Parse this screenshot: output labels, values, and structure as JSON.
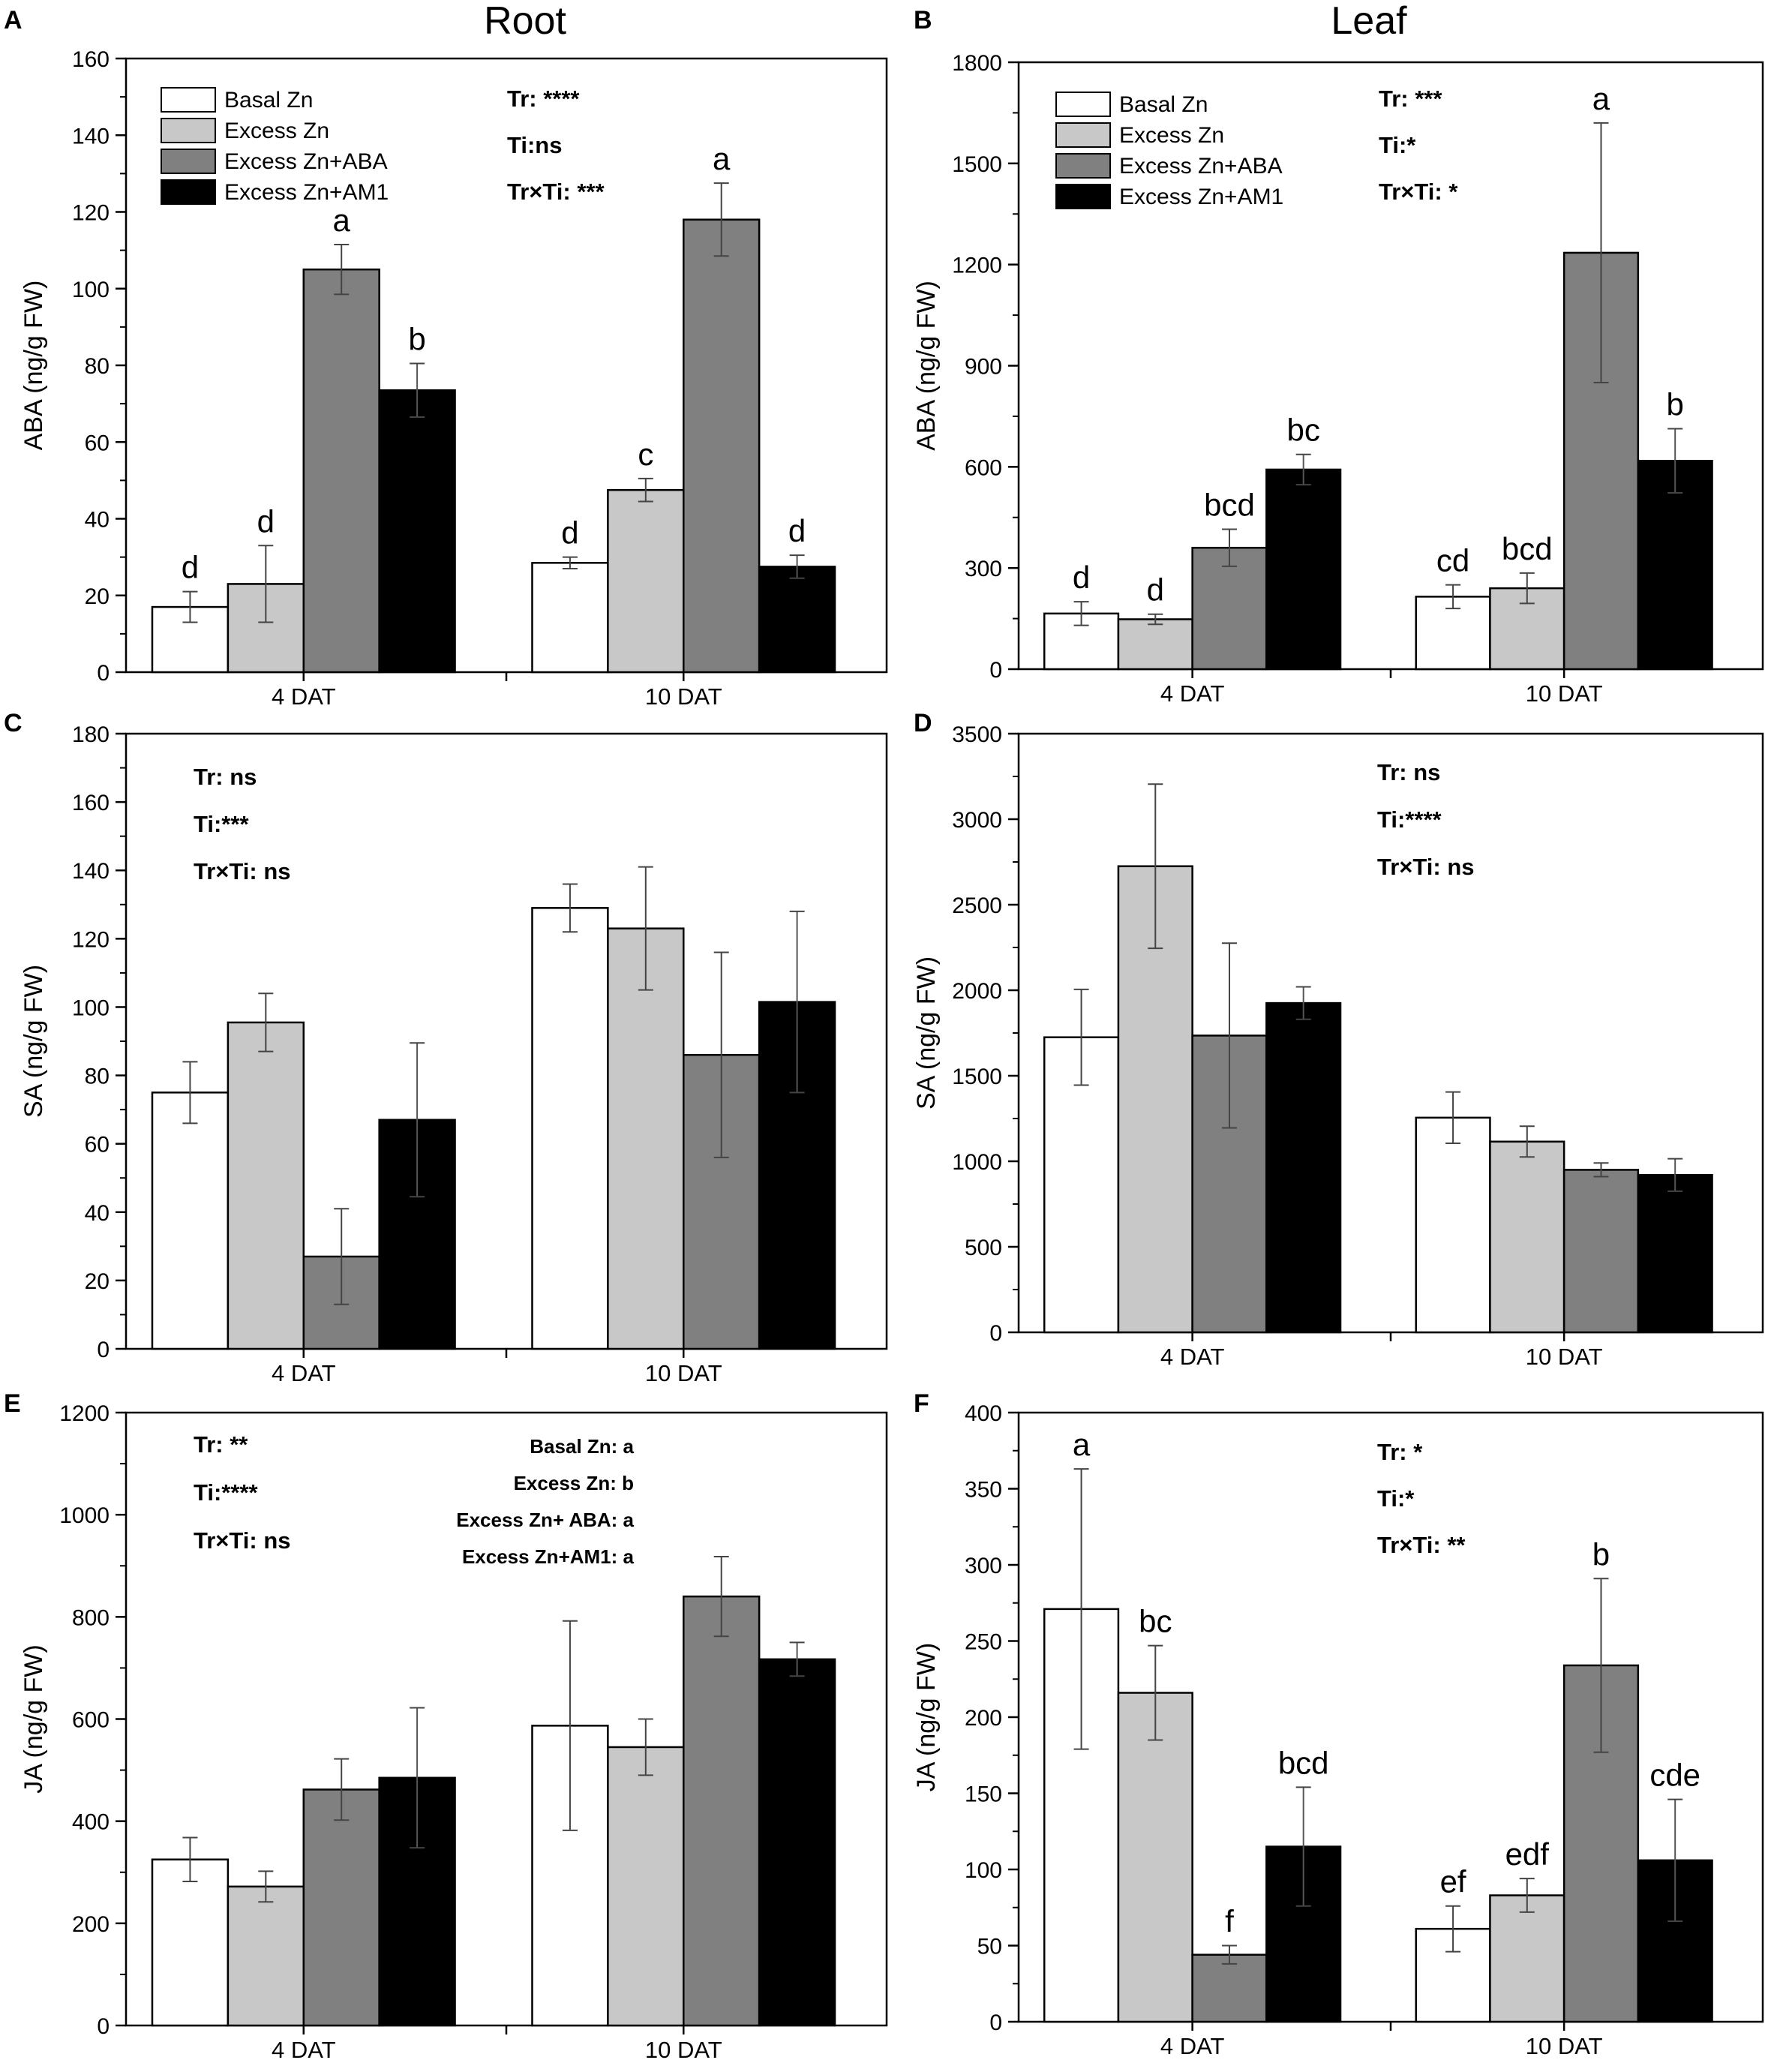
{
  "column_titles": {
    "root": "Root",
    "leaf": "Leaf"
  },
  "legend": {
    "entries": [
      "Basal Zn",
      "Excess Zn",
      "Excess Zn+ABA",
      "Excess Zn+AM1"
    ],
    "colors": [
      "#ffffff",
      "#c8c8c8",
      "#808080",
      "#000000"
    ]
  },
  "chart_data": [
    {
      "panel": "A",
      "type": "bar",
      "tissue": "Root",
      "categories": [
        "4 DAT",
        "10 DAT"
      ],
      "ylabel": "ABA (ng/g FW)",
      "ylim": [
        0,
        160
      ],
      "yticks": [
        "0",
        "20",
        "40",
        "60",
        "80",
        "100",
        "120",
        "140",
        "160"
      ],
      "series": [
        {
          "name": "Basal Zn",
          "values": [
            17,
            28.5
          ],
          "errors": [
            4,
            1.5
          ],
          "letters": [
            "d",
            "d"
          ]
        },
        {
          "name": "Excess Zn",
          "values": [
            23,
            47.5
          ],
          "errors": [
            10,
            3
          ],
          "letters": [
            "d",
            "c"
          ]
        },
        {
          "name": "Excess Zn+ABA",
          "values": [
            105,
            118
          ],
          "errors": [
            6.5,
            9.5
          ],
          "letters": [
            "a",
            "a"
          ]
        },
        {
          "name": "Excess Zn+AM1",
          "values": [
            73.5,
            27.5
          ],
          "errors": [
            7,
            3
          ],
          "letters": [
            "b",
            "d"
          ]
        }
      ],
      "stats": [
        "Tr: ****",
        "Ti:ns",
        "Tr×Ti: ***"
      ]
    },
    {
      "panel": "B",
      "type": "bar",
      "tissue": "Leaf",
      "categories": [
        "4 DAT",
        "10 DAT"
      ],
      "ylabel": "ABA (ng/g FW)",
      "ylim": [
        0,
        1800
      ],
      "yticks": [
        "0",
        "300",
        "600",
        "900",
        "1200",
        "1500",
        "1800"
      ],
      "series": [
        {
          "name": "Basal Zn",
          "values": [
            165,
            215
          ],
          "errors": [
            35,
            35
          ],
          "letters": [
            "d",
            "cd"
          ]
        },
        {
          "name": "Excess Zn",
          "values": [
            148,
            240
          ],
          "errors": [
            15,
            45
          ],
          "letters": [
            "d",
            "bcd"
          ]
        },
        {
          "name": "Excess Zn+ABA",
          "values": [
            360,
            1235
          ],
          "errors": [
            55,
            385
          ],
          "letters": [
            "bcd",
            "a"
          ]
        },
        {
          "name": "Excess Zn+AM1",
          "values": [
            592,
            618
          ],
          "errors": [
            45,
            95
          ],
          "letters": [
            "bc",
            "b"
          ]
        }
      ],
      "stats": [
        "Tr: ***",
        "Ti:*",
        "Tr×Ti: *"
      ]
    },
    {
      "panel": "C",
      "type": "bar",
      "tissue": "Root",
      "categories": [
        "4 DAT",
        "10 DAT"
      ],
      "ylabel": "SA (ng/g FW)",
      "ylim": [
        0,
        180
      ],
      "yticks": [
        "0",
        "20",
        "40",
        "60",
        "80",
        "100",
        "120",
        "140",
        "160",
        "180"
      ],
      "series": [
        {
          "name": "Basal Zn",
          "values": [
            75,
            129
          ],
          "errors": [
            9,
            7
          ],
          "letters": [
            "",
            ""
          ]
        },
        {
          "name": "Excess Zn",
          "values": [
            95.5,
            123
          ],
          "errors": [
            8.5,
            18
          ],
          "letters": [
            "",
            ""
          ]
        },
        {
          "name": "Excess Zn+ABA",
          "values": [
            27,
            86
          ],
          "errors": [
            14,
            30
          ],
          "letters": [
            "",
            ""
          ]
        },
        {
          "name": "Excess Zn+AM1",
          "values": [
            67,
            101.5
          ],
          "errors": [
            22.5,
            26.5
          ],
          "letters": [
            "",
            ""
          ]
        }
      ],
      "stats": [
        "Tr: ns",
        "Ti:***",
        "Tr×Ti: ns"
      ]
    },
    {
      "panel": "D",
      "type": "bar",
      "tissue": "Leaf",
      "categories": [
        "4 DAT",
        "10 DAT"
      ],
      "ylabel": "SA (ng/g FW)",
      "ylim": [
        0,
        3500
      ],
      "yticks": [
        "0",
        "500",
        "1000",
        "1500",
        "2000",
        "2500",
        "3000",
        "3500"
      ],
      "series": [
        {
          "name": "Basal Zn",
          "values": [
            1725,
            1255
          ],
          "errors": [
            280,
            150
          ],
          "letters": [
            "",
            ""
          ]
        },
        {
          "name": "Excess Zn",
          "values": [
            2725,
            1115
          ],
          "errors": [
            480,
            90
          ],
          "letters": [
            "",
            ""
          ]
        },
        {
          "name": "Excess Zn+ABA",
          "values": [
            1735,
            950
          ],
          "errors": [
            540,
            40
          ],
          "letters": [
            "",
            ""
          ]
        },
        {
          "name": "Excess Zn+AM1",
          "values": [
            1925,
            920
          ],
          "errors": [
            95,
            95
          ],
          "letters": [
            "",
            ""
          ]
        }
      ],
      "stats": [
        "Tr: ns",
        "Ti:****",
        "Tr×Ti: ns"
      ]
    },
    {
      "panel": "E",
      "type": "bar",
      "tissue": "Root",
      "categories": [
        "4 DAT",
        "10 DAT"
      ],
      "ylabel": "JA (ng/g FW)",
      "ylim": [
        0,
        1200
      ],
      "yticks": [
        "0",
        "200",
        "400",
        "600",
        "800",
        "1000",
        "1200"
      ],
      "series": [
        {
          "name": "Basal Zn",
          "values": [
            325,
            587
          ],
          "errors": [
            43,
            205
          ],
          "letters": [
            "",
            ""
          ]
        },
        {
          "name": "Excess Zn",
          "values": [
            272,
            545
          ],
          "errors": [
            30,
            55
          ],
          "letters": [
            "",
            ""
          ]
        },
        {
          "name": "Excess Zn+ABA",
          "values": [
            462,
            840
          ],
          "errors": [
            60,
            78
          ],
          "letters": [
            "",
            ""
          ]
        },
        {
          "name": "Excess Zn+AM1",
          "values": [
            485,
            717
          ],
          "errors": [
            137,
            33
          ],
          "letters": [
            "",
            ""
          ]
        }
      ],
      "stats": [
        "Tr: **",
        "Ti:****",
        "Tr×Ti: ns"
      ],
      "group_letters": [
        "Basal Zn: a",
        "Excess Zn: b",
        "Excess Zn+ ABA: a",
        "Excess Zn+AM1: a"
      ]
    },
    {
      "panel": "F",
      "type": "bar",
      "tissue": "Leaf",
      "categories": [
        "4 DAT",
        "10 DAT"
      ],
      "ylabel": "JA (ng/g FW)",
      "ylim": [
        0,
        400
      ],
      "yticks": [
        "0",
        "50",
        "100",
        "150",
        "200",
        "250",
        "300",
        "350",
        "400"
      ],
      "series": [
        {
          "name": "Basal Zn",
          "values": [
            271,
            61
          ],
          "errors": [
            92,
            15
          ],
          "letters": [
            "a",
            "ef"
          ]
        },
        {
          "name": "Excess Zn",
          "values": [
            216,
            83
          ],
          "errors": [
            31,
            11
          ],
          "letters": [
            "bc",
            "edf"
          ]
        },
        {
          "name": "Excess Zn+ABA",
          "values": [
            44,
            234
          ],
          "errors": [
            6,
            57
          ],
          "letters": [
            "f",
            "b"
          ]
        },
        {
          "name": "Excess Zn+AM1",
          "values": [
            115,
            106
          ],
          "errors": [
            39,
            40
          ],
          "letters": [
            "bcd",
            "cde"
          ]
        }
      ],
      "stats": [
        "Tr: *",
        "Ti:*",
        "Tr×Ti: **"
      ]
    }
  ]
}
